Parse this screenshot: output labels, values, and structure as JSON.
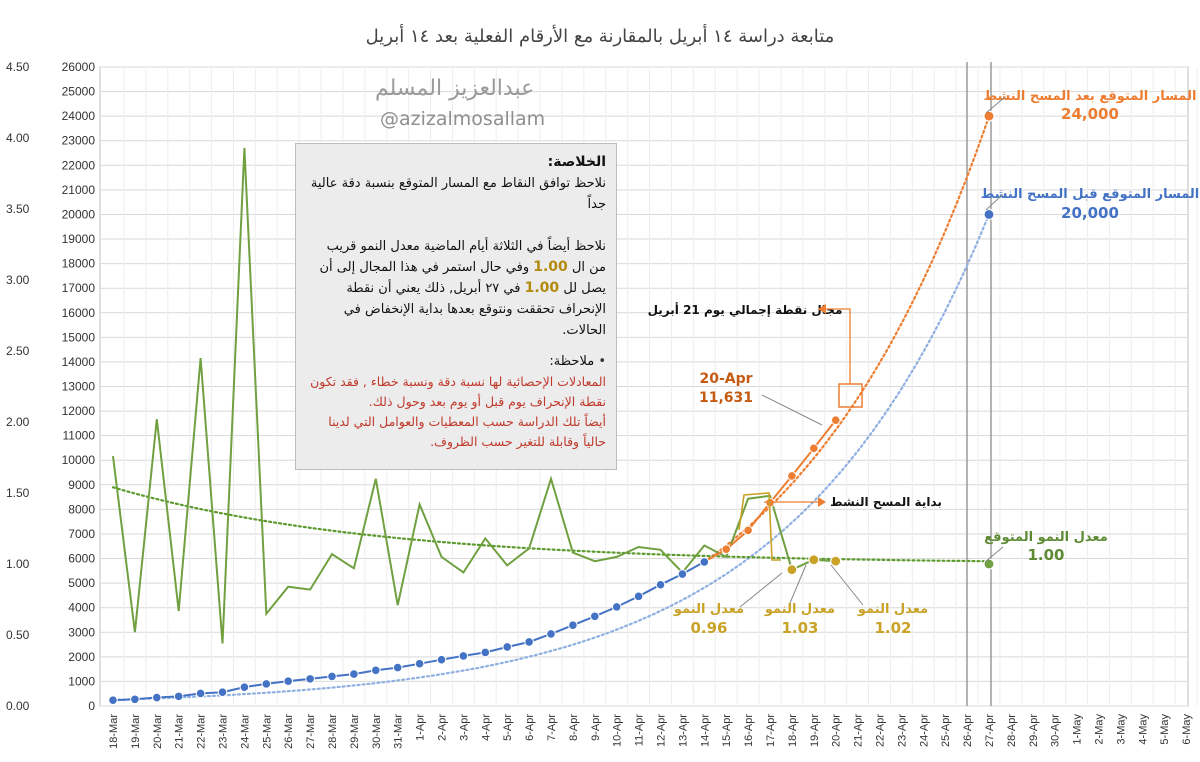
{
  "colors": {
    "blue": "#4472c4",
    "orange": "#ed7d31",
    "green": "#70a040",
    "gold": "#c9a227",
    "darkgreen": "#5d8a33",
    "grid": "#d9d9d9",
    "red": "#c0392b"
  },
  "watermark": {
    "name": "عبدالعزيز المسلم",
    "handle": "@azizalmosallam"
  },
  "summary": {
    "heading_colon": ":",
    "heading": "الخلاصة",
    "p1": "نلاحظ توافق النقاط مع المسار المتوقع بنسبة دقة عالية جداً",
    "p2a": "نلاحظ أيضاً في الثلاثة أيام الماضية معدل النمو قريب من ال",
    "p2_val1": "1.00",
    "p2b": "وفي حال استمر في هذا المجال إلى أن يصل لل",
    "p2_val2": "1.00",
    "p2c": "في ٢٧ أبريل, ذلك يعني أن نقطة الإنحراف تحققت ونتوقع بعدها بداية الإنخفاض في الحالات.",
    "note_bullet": "•",
    "note_title": "ملاحظة:",
    "note_l1": "المعادلات الإحصائية لها نسبة دقة ونسبة خطاء , فقد تكون نقطة الإنحراف يوم قبل أو يوم بعد وحول ذلك.",
    "note_l2": "أيضاً تلك الدراسة حسب المعطيات والعوامل التي لدينا حالياً وقابلة للتغير حسب الظروف."
  },
  "chart_data": {
    "type": "line",
    "title": "متابعة دراسة ١٤ أبريل بالمقارنة مع الأرقام الفعلية بعد ١٤ أبريل",
    "categories": [
      "18-Mar",
      "19-Mar",
      "20-Mar",
      "21-Mar",
      "22-Mar",
      "23-Mar",
      "24-Mar",
      "25-Mar",
      "26-Mar",
      "27-Mar",
      "28-Mar",
      "29-Mar",
      "30-Mar",
      "31-Mar",
      "1-Apr",
      "2-Apr",
      "3-Apr",
      "4-Apr",
      "5-Apr",
      "6-Apr",
      "7-Apr",
      "8-Apr",
      "9-Apr",
      "10-Apr",
      "11-Apr",
      "12-Apr",
      "13-Apr",
      "14-Apr",
      "15-Apr",
      "16-Apr",
      "17-Apr",
      "18-Apr",
      "19-Apr",
      "20-Apr",
      "21-Apr",
      "22-Apr",
      "23-Apr",
      "24-Apr",
      "25-Apr",
      "26-Apr",
      "27-Apr",
      "28-Apr",
      "29-Apr",
      "30-Apr",
      "1-May",
      "2-May",
      "3-May",
      "4-May",
      "5-May",
      "6-May"
    ],
    "y_left": {
      "min": 0,
      "max": 26000,
      "step": 1000,
      "ticks": [
        "0",
        "1000",
        "2000",
        "3000",
        "4000",
        "5000",
        "6000",
        "7000",
        "8000",
        "9000",
        "10000",
        "11000",
        "12000",
        "13000",
        "14000",
        "15000",
        "16000",
        "17000",
        "18000",
        "19000",
        "20000",
        "21000",
        "22000",
        "23000",
        "24000",
        "25000",
        "26000"
      ]
    },
    "y_right": {
      "min": 0,
      "max": 4.5,
      "step": 0.5,
      "ticks": [
        "0.00",
        "0.50",
        "1.00",
        "1.50",
        "2.00",
        "2.50",
        "3.00",
        "3.50",
        "4.00",
        "4.50"
      ]
    },
    "series": [
      {
        "name": "cases_actual_blue",
        "axis": "left",
        "x": [
          0,
          1,
          2,
          3,
          4,
          5,
          6,
          7,
          8,
          9,
          10,
          11,
          12,
          13,
          14,
          15,
          16,
          17,
          18,
          19,
          20,
          21,
          22,
          23,
          24,
          25,
          26,
          27
        ],
        "values": [
          238,
          274,
          344,
          392,
          511,
          562,
          767,
          900,
          1012,
          1104,
          1203,
          1299,
          1453,
          1563,
          1720,
          1885,
          2039,
          2179,
          2402,
          2605,
          2932,
          3287,
          3651,
          4033,
          4462,
          4934,
          5369,
          5862
        ]
      },
      {
        "name": "cases_actual_orange",
        "axis": "left",
        "x": [
          28,
          29,
          30,
          31,
          32,
          33
        ],
        "values": [
          6380,
          7142,
          8274,
          9362,
          10484,
          11631
        ]
      },
      {
        "name": "growth_rate_actual",
        "axis": "right",
        "x": [
          0,
          1,
          2,
          3,
          4,
          5,
          6,
          7,
          8,
          9,
          10,
          11,
          12,
          13,
          14,
          15,
          16,
          17,
          18,
          19,
          20,
          21,
          22,
          23,
          24,
          25,
          26,
          27,
          28,
          29,
          30,
          31,
          32,
          33
        ],
        "values": [
          1.76,
          0.52,
          2.02,
          0.67,
          2.45,
          0.44,
          3.93,
          0.65,
          0.84,
          0.82,
          1.07,
          0.97,
          1.6,
          0.71,
          1.42,
          1.05,
          0.94,
          1.18,
          0.99,
          1.11,
          1.6,
          1.08,
          1.02,
          1.05,
          1.12,
          1.1,
          0.94,
          1.13,
          1.05,
          1.46,
          1.48,
          0.96,
          1.03,
          1.02
        ]
      },
      {
        "name": "expected_before_survey_trend",
        "axis": "left",
        "style": "dotted",
        "x": [
          0,
          40
        ],
        "values": [
          250,
          20000
        ],
        "curve": "exponential"
      },
      {
        "name": "expected_after_survey_trend",
        "axis": "left",
        "style": "dotted",
        "x": [
          27,
          40
        ],
        "values": [
          5862,
          24000
        ],
        "curve": "exponential"
      },
      {
        "name": "expected_growth_rate_trend",
        "axis": "right",
        "style": "dotted",
        "x": [
          0,
          40
        ],
        "values": [
          1.54,
          1.0
        ],
        "curve": "decay"
      }
    ],
    "highlights": [
      {
        "id": "rate-18",
        "x": 31,
        "value": 0.96,
        "axis": "right"
      },
      {
        "id": "rate-19",
        "x": 32,
        "value": 1.03,
        "axis": "right"
      },
      {
        "id": "rate-20",
        "x": 33,
        "value": 1.02,
        "axis": "right"
      },
      {
        "id": "end-growth",
        "x": 40,
        "value": 1.0,
        "axis": "right"
      },
      {
        "id": "end-after",
        "x": 40,
        "value": 24000,
        "axis": "left"
      },
      {
        "id": "end-before",
        "x": 40,
        "value": 20000,
        "axis": "left"
      }
    ],
    "annotations": {
      "after_label": "المسار المتوقع بعد المسح النشط",
      "after_value": "24,000",
      "before_label": "المسار المتوقع قبل المسح النشط",
      "before_value": "20,000",
      "day21_label": "مجال نقطة إجمالي يوم 21 أبريل",
      "point20_date": "20-Apr",
      "point20_value": "11,631",
      "survey_start": "بداية المسح النشط",
      "expected_rate_label": "معدل النمو المتوقع",
      "expected_rate_value": "1.00",
      "rate_label": "معدل النمو",
      "rate1_value": "0.96",
      "rate2_value": "1.03",
      "rate3_value": "1.02"
    }
  }
}
